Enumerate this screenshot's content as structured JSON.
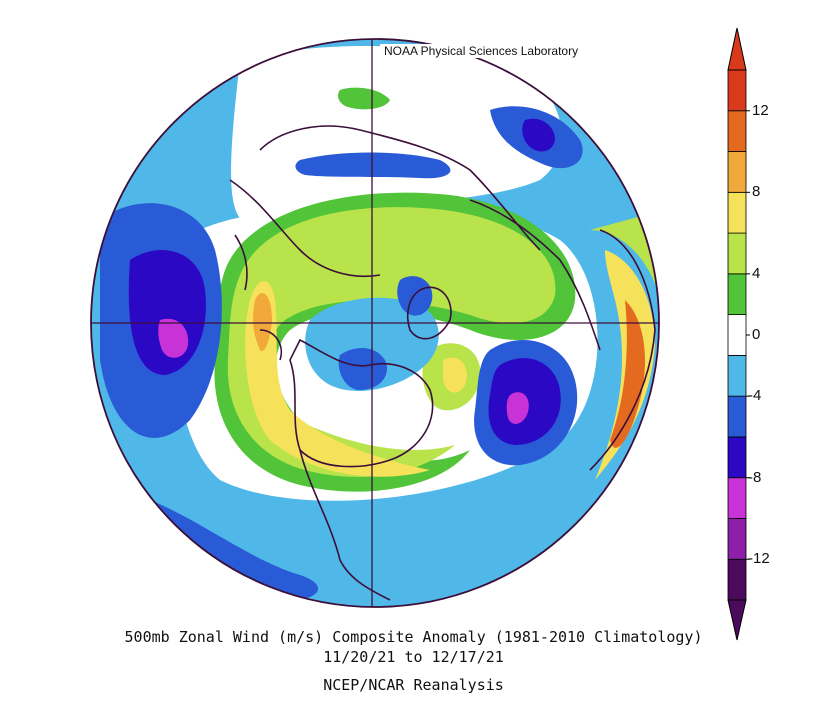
{
  "attribution": "NOAA Physical Sciences Laboratory",
  "caption": {
    "line1": "500mb Zonal Wind (m/s) Composite Anomaly (1981-2010 Climatology)",
    "line2": "11/20/21  to 12/17/21",
    "line3": "NCEP/NCAR Reanalysis"
  },
  "colorbar": {
    "tick_labels": [
      "12",
      "8",
      "4",
      "0",
      "-4",
      "-8",
      "-12"
    ],
    "levels": [
      -14,
      -12,
      -10,
      -8,
      -6,
      -4,
      -2,
      2,
      4,
      6,
      8,
      10,
      12,
      14
    ],
    "colors": [
      "#4b0a5c",
      "#8e1fa8",
      "#c733d6",
      "#2a08c4",
      "#2a5bd6",
      "#4fb8e8",
      "#ffffff",
      "#52c43a",
      "#b9e34a",
      "#f5e25a",
      "#f2a93b",
      "#e36a1f",
      "#d93a1c"
    ]
  },
  "map": {
    "projection": "north-polar-stereographic",
    "field": "500mb zonal wind anomaly",
    "colors": {
      "land_outline": "#3c0f3a",
      "grid": "#3c0f3a",
      "neg_strong": "#8e1fa8",
      "neg_mid": "#2a08c4",
      "neg_weak": "#2a5bd6",
      "neg_light": "#4fb8e8",
      "pos_light": "#52c43a",
      "pos_weak": "#b9e34a",
      "pos_mid": "#f5e25a",
      "pos_strong": "#f2a93b",
      "pos_max": "#e36a1f"
    }
  }
}
